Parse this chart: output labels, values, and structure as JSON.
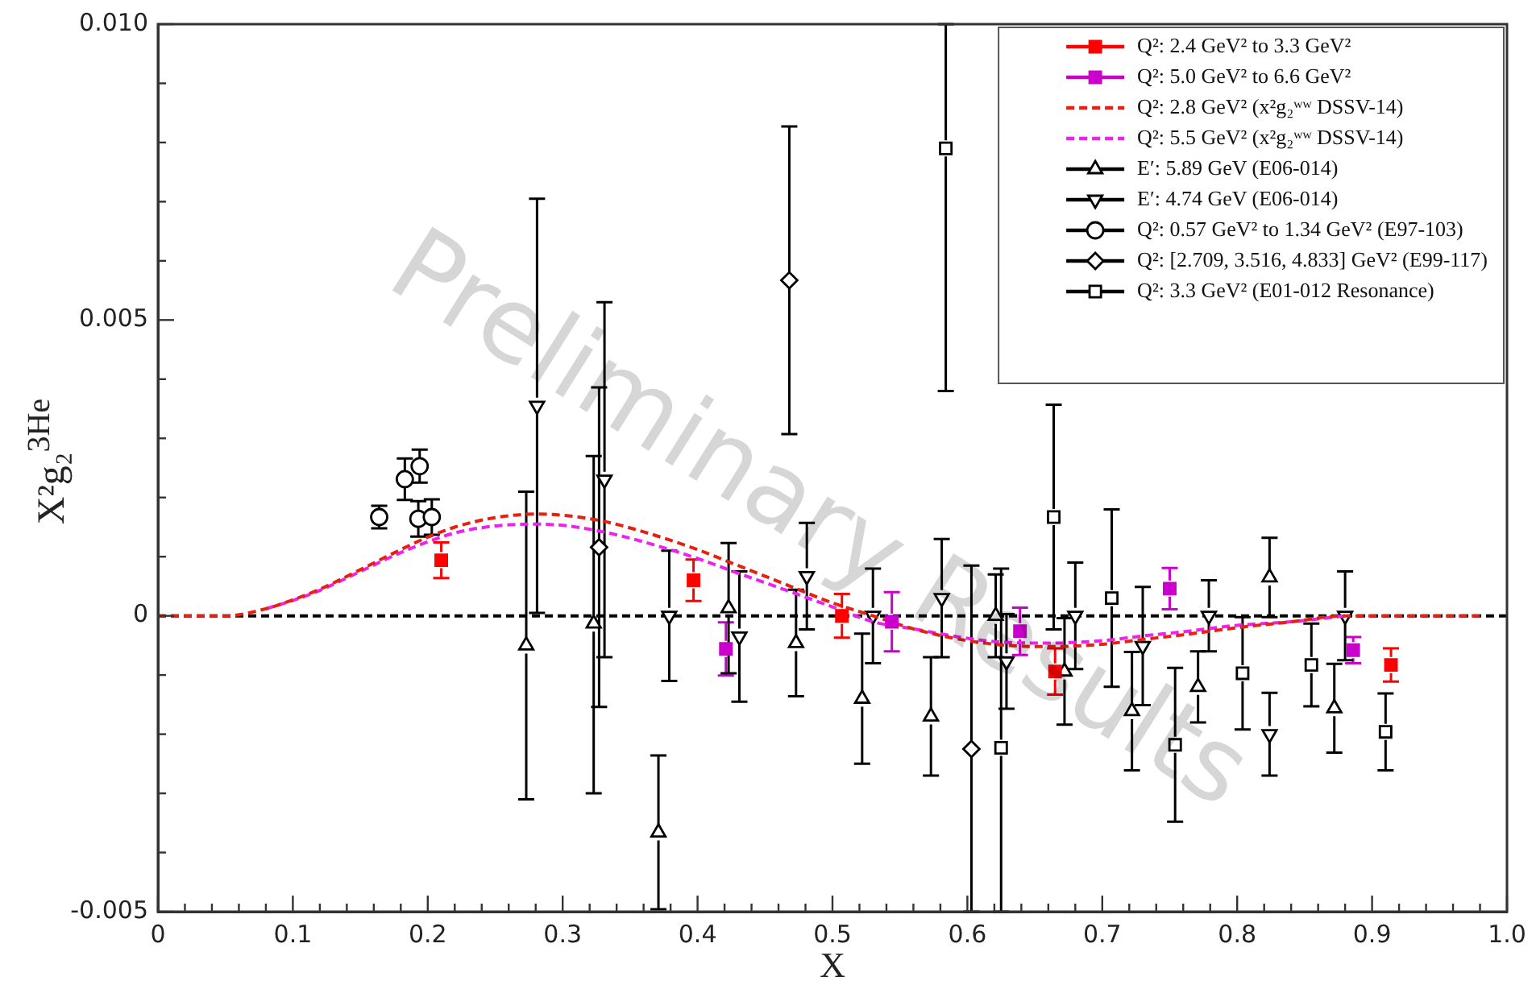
{
  "chart_data": {
    "type": "scatter",
    "xlabel": "X",
    "ylabel": "X²g₂$^{3He}$",
    "xlim": [
      0,
      1
    ],
    "ylim": [
      -0.005,
      0.01
    ],
    "xticks": [
      {
        "value": 0,
        "label": "0"
      },
      {
        "value": 0.02,
        "label": null
      },
      {
        "value": 0.04,
        "label": null
      },
      {
        "value": 0.06,
        "label": null
      },
      {
        "value": 0.08,
        "label": null
      },
      0.1,
      {
        "value": 0.12,
        "label": null
      },
      {
        "value": 0.14,
        "label": null
      },
      {
        "value": 0.16,
        "label": null
      },
      {
        "value": 0.18,
        "label": null
      },
      0.2,
      {
        "value": 0.22,
        "label": null
      },
      {
        "value": 0.24,
        "label": null
      },
      {
        "value": 0.26,
        "label": null
      },
      {
        "value": 0.28,
        "label": null
      },
      0.3,
      {
        "value": 0.32,
        "label": null
      },
      {
        "value": 0.34,
        "label": null
      },
      {
        "value": 0.36,
        "label": null
      },
      {
        "value": 0.38,
        "label": null
      },
      0.4,
      {
        "value": 0.42,
        "label": null
      },
      {
        "value": 0.44,
        "label": null
      },
      {
        "value": 0.46,
        "label": null
      },
      {
        "value": 0.48,
        "label": null
      },
      0.5,
      {
        "value": 0.52,
        "label": null
      },
      {
        "value": 0.54,
        "label": null
      },
      {
        "value": 0.56,
        "label": null
      },
      {
        "value": 0.58,
        "label": null
      },
      0.6,
      {
        "value": 0.62,
        "label": null
      },
      {
        "value": 0.64,
        "label": null
      },
      {
        "value": 0.66,
        "label": null
      },
      {
        "value": 0.68,
        "label": null
      },
      0.7,
      {
        "value": 0.72,
        "label": null
      },
      {
        "value": 0.74,
        "label": null
      },
      {
        "value": 0.76,
        "label": null
      },
      {
        "value": 0.78,
        "label": null
      },
      0.8,
      {
        "value": 0.82,
        "label": null
      },
      {
        "value": 0.84,
        "label": null
      },
      {
        "value": 0.86,
        "label": null
      },
      {
        "value": 0.88,
        "label": null
      },
      0.9,
      {
        "value": 0.92,
        "label": null
      },
      {
        "value": 0.94,
        "label": null
      },
      {
        "value": 0.96,
        "label": null
      },
      {
        "value": 0.98,
        "label": null
      },
      {
        "value": 1,
        "label": "1.0"
      }
    ],
    "yticks": [
      -0.005,
      {
        "value": -0.004,
        "label": null
      },
      {
        "value": -0.003,
        "label": null
      },
      {
        "value": -0.002,
        "label": null
      },
      {
        "value": -0.001,
        "label": null
      },
      0,
      {
        "value": 0.001,
        "label": null
      },
      {
        "value": 0.002,
        "label": null
      },
      {
        "value": 0.003,
        "label": null
      },
      {
        "value": 0.004,
        "label": null
      },
      0.005,
      {
        "value": 0.006,
        "label": null
      },
      {
        "value": 0.007,
        "label": null
      },
      {
        "value": 0.008,
        "label": null
      },
      {
        "value": 0.009,
        "label": null
      },
      {
        "value": 0.01,
        "label": "0.010"
      }
    ],
    "legend": "top right",
    "ref_lines": [
      {
        "axis": "y",
        "value": 0,
        "color": "#000000",
        "line_style": "dashed"
      }
    ],
    "annotations": [
      "Preliminary Results"
    ],
    "series": [
      {
        "name": "Q²: 2.4 GeV² to 3.3 GeV²",
        "type": "scatter",
        "marker": "square",
        "color": "#ff0000",
        "x": [
          0.21,
          0.397,
          0.507,
          0.665,
          0.914
        ],
        "values": [
          0.00094,
          0.0006,
          0,
          -0.00094,
          -0.00083
        ],
        "errors": [
          0.0003,
          0.00035,
          0.00037,
          0.00039,
          0.00028
        ]
      },
      {
        "name": "Q²: 5.0 GeV² to 6.6 GeV²",
        "type": "scatter",
        "marker": "square",
        "color": "#cc00cc",
        "x": [
          0.421,
          0.544,
          0.639,
          0.75,
          0.886
        ],
        "values": [
          -0.00056,
          -0.0001,
          -0.00026,
          0.00046,
          -0.00058
        ],
        "errors": [
          0.00045,
          0.0005,
          0.0004,
          0.00035,
          0.00022
        ]
      },
      {
        "name": "Q²: 2.8 GeV² (x²g₂ʷʷ DSSV-14)",
        "type": "line",
        "marker": "none",
        "line_style": "dashed",
        "color": "#e8200f",
        "x": [
          0,
          0.02,
          0.05,
          0.08,
          0.1,
          0.12,
          0.15,
          0.18,
          0.2,
          0.22,
          0.25,
          0.28,
          0.3,
          0.33,
          0.36,
          0.4,
          0.43,
          0.46,
          0.5,
          0.53,
          0.56,
          0.6,
          0.63,
          0.66,
          0.7,
          0.73,
          0.76,
          0.8,
          0.84,
          0.88,
          0.92,
          0.96,
          0.98
        ],
        "values": [
          0,
          0,
          0,
          0.00012,
          0.00027,
          0.00045,
          0.00078,
          0.00112,
          0.00133,
          0.0015,
          0.00166,
          0.00172,
          0.0017,
          0.0016,
          0.00142,
          0.00112,
          0.00085,
          0.00058,
          0.00022,
          0,
          -0.00022,
          -0.00042,
          -0.0005,
          -0.00052,
          -0.00048,
          -0.0004,
          -0.00032,
          -0.0002,
          -0.0001,
          0,
          0,
          0,
          0
        ]
      },
      {
        "name": "Q²: 5.5 GeV² (x²g₂ʷʷ DSSV-14)",
        "type": "line",
        "marker": "none",
        "line_style": "dashed",
        "color": "#ee22ee",
        "x": [
          0.08,
          0.1,
          0.12,
          0.15,
          0.18,
          0.2,
          0.22,
          0.25,
          0.28,
          0.3,
          0.33,
          0.36,
          0.4,
          0.43,
          0.46,
          0.5,
          0.53,
          0.56,
          0.6,
          0.63,
          0.66,
          0.7,
          0.73,
          0.76,
          0.8,
          0.84,
          0.88
        ],
        "values": [
          0.00012,
          0.00026,
          0.00043,
          0.00075,
          0.00107,
          0.00125,
          0.0014,
          0.00152,
          0.00155,
          0.00153,
          0.00142,
          0.00125,
          0.00097,
          0.00072,
          0.00048,
          0.00015,
          -0.0001,
          -0.00022,
          -0.00038,
          -0.00045,
          -0.00046,
          -0.00042,
          -0.00034,
          -0.00027,
          -0.00016,
          -0.0001,
          0
        ]
      },
      {
        "name": "E′: 5.89 GeV (E06-014)",
        "type": "scatter",
        "marker": "triangle",
        "color": "#000000",
        "x": [
          0.273,
          0.323,
          0.371,
          0.423,
          0.473,
          0.522,
          0.573,
          0.621,
          0.672,
          0.722,
          0.771,
          0.824,
          0.872
        ],
        "values": [
          -0.0005,
          -0.00013,
          -0.00366,
          0.00013,
          -0.00046,
          -0.0014,
          -0.0017,
          0,
          -0.00094,
          -0.00161,
          -0.0012,
          0.00065,
          -0.00156
        ],
        "errors": [
          0.0026,
          [
            -0.003,
            0.0027
          ],
          0.0013,
          0.0011,
          0.0009,
          0.0011,
          0.001,
          0.0007,
          0.0009,
          0.001,
          0.0006,
          0.00067,
          0.00075
        ]
      },
      {
        "name": "E′: 4.74 GeV (E06-014)",
        "type": "scatter",
        "marker": "triangle-down",
        "color": "#000000",
        "x": [
          0.281,
          0.331,
          0.379,
          0.431,
          0.481,
          0.53,
          0.581,
          0.629,
          0.68,
          0.73,
          0.779,
          0.824,
          0.88
        ],
        "values": [
          0.00355,
          0.0023,
          0,
          -0.00035,
          0.00067,
          0,
          0.0003,
          -0.00077,
          0,
          -0.00051,
          0,
          -0.002,
          0
        ],
        "errors": [
          0.0035,
          0.003,
          0.0011,
          0.0011,
          0.0009,
          0.0008,
          0.001,
          0.0008,
          0.0009,
          0.001,
          0.0006,
          0.0007,
          0.00075
        ]
      },
      {
        "name": "Q²: 0.57 GeV² to 1.34 GeV² (E97-103)",
        "type": "scatter",
        "marker": "circle",
        "color": "#000000",
        "x": [
          0.164,
          0.183,
          0.193,
          0.194,
          0.203
        ],
        "values": [
          0.00167,
          0.00231,
          0.00164,
          0.00253,
          0.00167
        ],
        "errors": [
          0.00019,
          0.00035,
          0.0003,
          0.00028,
          0.0003
        ]
      },
      {
        "name": "Q²: [2.709, 3.516, 4.833] GeV² (E99-117)",
        "type": "scatter",
        "marker": "diamond",
        "color": "#000000",
        "x": [
          0.327,
          0.468,
          0.603
        ],
        "values": [
          0.00116,
          0.00567,
          -0.00225
        ],
        "errors": [
          0.0027,
          0.0026,
          [
            -0.005,
            0.00085
          ]
        ]
      },
      {
        "name": "Q²: 3.3 GeV² (E01-012 Resonance)",
        "type": "scatter",
        "marker": "square",
        "color": "#000000",
        "x": [
          0.584,
          0.625,
          0.664,
          0.707,
          0.754,
          0.804,
          0.855,
          0.91
        ],
        "values": [
          0.0079,
          -0.00223,
          0.00167,
          0.0003,
          -0.00218,
          -0.00097,
          -0.00083,
          -0.00196
        ],
        "errors": [
          [
            0.0038,
            0.01
          ],
          [
            -0.005,
            0.0008
          ],
          0.0019,
          0.0015,
          0.0013,
          0.00095,
          0.0007,
          0.00065
        ]
      }
    ]
  }
}
